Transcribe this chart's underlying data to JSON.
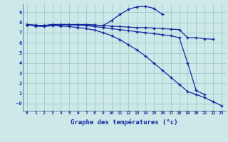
{
  "bg_color": "#cce8e8",
  "grid_color": "#99c4c4",
  "line_color": "#1428a0",
  "xlabel": "Graphe des températures (°c)",
  "xlim": [
    -0.5,
    23.5
  ],
  "ylim": [
    -0.7,
    9.8
  ],
  "yticks": [
    0,
    1,
    2,
    3,
    4,
    5,
    6,
    7,
    8,
    9
  ],
  "xticks": [
    0,
    1,
    2,
    3,
    4,
    5,
    6,
    7,
    8,
    9,
    10,
    11,
    12,
    13,
    14,
    15,
    16,
    17,
    18,
    19,
    20,
    21,
    22,
    23
  ],
  "series": [
    {
      "x": [
        0,
        1,
        2,
        3,
        4,
        5,
        6,
        7,
        8,
        9,
        10,
        11,
        12,
        13,
        14,
        15,
        16,
        17,
        18,
        19,
        20,
        21,
        22
      ],
      "y": [
        7.8,
        7.7,
        7.7,
        7.75,
        7.8,
        7.8,
        7.8,
        7.8,
        7.75,
        7.7,
        7.65,
        7.6,
        7.55,
        7.5,
        7.5,
        7.45,
        7.4,
        7.35,
        7.3,
        6.5,
        6.5,
        6.4,
        6.35
      ]
    },
    {
      "x": [
        0,
        1,
        2,
        3,
        4,
        5,
        6,
        7,
        8,
        9,
        10,
        11,
        12,
        13,
        14,
        15,
        16,
        17,
        18,
        19,
        20,
        21
      ],
      "y": [
        7.8,
        7.7,
        7.7,
        7.8,
        7.8,
        7.8,
        7.75,
        7.7,
        7.6,
        7.5,
        7.4,
        7.3,
        7.2,
        7.1,
        7.0,
        6.9,
        6.8,
        6.7,
        6.5,
        4.0,
        1.3,
        0.9
      ]
    },
    {
      "x": [
        0,
        1,
        2,
        3,
        4,
        5,
        6,
        7,
        8,
        9,
        10,
        11,
        12,
        13,
        14,
        15,
        16,
        17,
        18,
        19,
        20,
        21,
        22,
        23
      ],
      "y": [
        7.8,
        7.65,
        7.6,
        7.7,
        7.65,
        7.6,
        7.5,
        7.4,
        7.25,
        7.0,
        6.7,
        6.3,
        5.8,
        5.3,
        4.7,
        4.0,
        3.3,
        2.6,
        1.9,
        1.2,
        0.9,
        0.6,
        0.2,
        -0.2
      ]
    },
    {
      "x": [
        0,
        1,
        2,
        3,
        4,
        5,
        6,
        7,
        8,
        9,
        10,
        11,
        12,
        13,
        14,
        15,
        16
      ],
      "y": [
        7.8,
        7.75,
        7.7,
        7.8,
        7.8,
        7.8,
        7.75,
        7.8,
        7.75,
        7.7,
        8.2,
        8.8,
        9.3,
        9.55,
        9.6,
        9.4,
        8.8
      ]
    }
  ]
}
